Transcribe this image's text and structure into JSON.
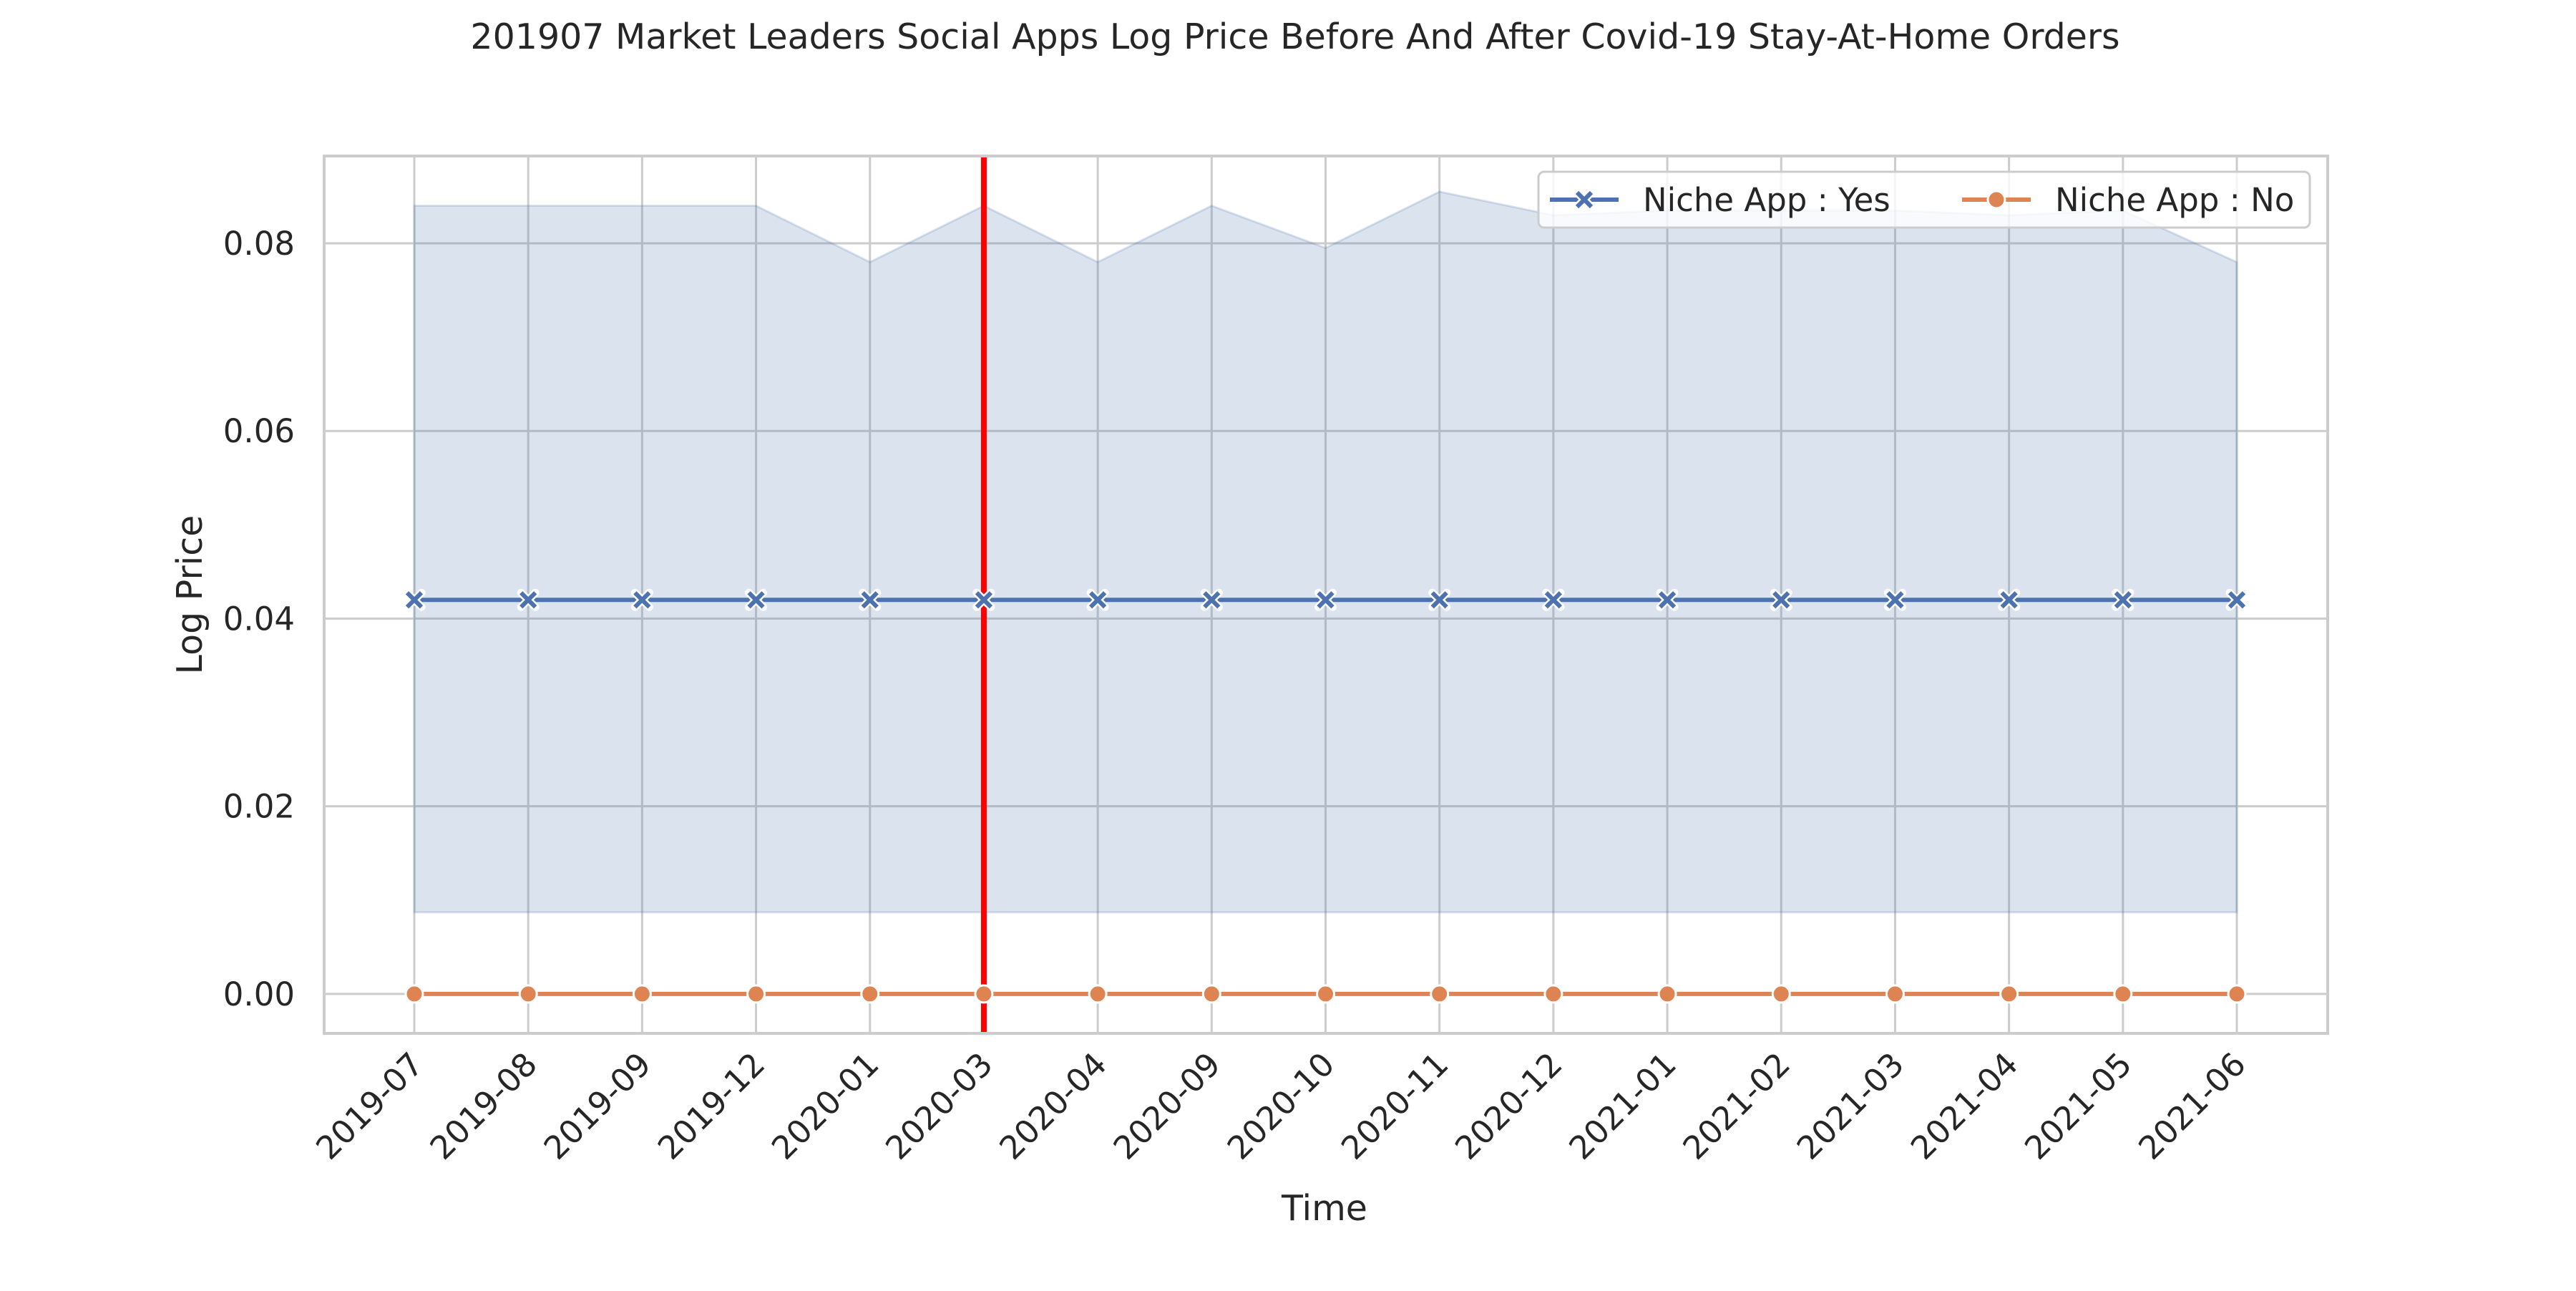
{
  "chart_data": {
    "type": "line",
    "title": "201907 Market Leaders Social Apps Log Price Before And After Covid-19 Stay-At-Home Orders",
    "xlabel": "Time",
    "ylabel": "Log Price",
    "categories": [
      "2019-07",
      "2019-08",
      "2019-09",
      "2019-12",
      "2020-01",
      "2020-03",
      "2020-04",
      "2020-09",
      "2020-10",
      "2020-11",
      "2020-12",
      "2021-01",
      "2021-02",
      "2021-03",
      "2021-04",
      "2021-05",
      "2021-06"
    ],
    "ylim": [
      -0.0042,
      0.0893
    ],
    "yticks": [
      0.0,
      0.02,
      0.04,
      0.06,
      0.08
    ],
    "ytick_labels": [
      "0.00",
      "0.02",
      "0.04",
      "0.06",
      "0.08"
    ],
    "grid": true,
    "legend": {
      "placement": "top-right",
      "columns": 2
    },
    "vertical_line": {
      "x": "2020-03",
      "color": "#ff0000"
    },
    "series": [
      {
        "name": "Niche App : Yes",
        "color": "#4c72b0",
        "marker": "x",
        "values": [
          0.042,
          0.042,
          0.042,
          0.042,
          0.042,
          0.042,
          0.042,
          0.042,
          0.042,
          0.042,
          0.042,
          0.042,
          0.042,
          0.042,
          0.042,
          0.042,
          0.042
        ],
        "ci_low": [
          0.0087,
          0.0087,
          0.0087,
          0.0087,
          0.0087,
          0.0087,
          0.0087,
          0.0087,
          0.0087,
          0.0087,
          0.0087,
          0.0087,
          0.0087,
          0.0087,
          0.0087,
          0.0087,
          0.0087
        ],
        "ci_high": [
          0.084,
          0.084,
          0.084,
          0.084,
          0.078,
          0.084,
          0.078,
          0.084,
          0.0795,
          0.0855,
          0.083,
          0.0835,
          0.0835,
          0.0835,
          0.083,
          0.0835,
          0.078
        ]
      },
      {
        "name": "Niche App : No",
        "color": "#dd8452",
        "marker": "o",
        "values": [
          0.0,
          0.0,
          0.0,
          0.0,
          0.0,
          0.0,
          0.0,
          0.0,
          0.0,
          0.0,
          0.0,
          0.0,
          0.0,
          0.0,
          0.0,
          0.0,
          0.0
        ]
      }
    ]
  }
}
